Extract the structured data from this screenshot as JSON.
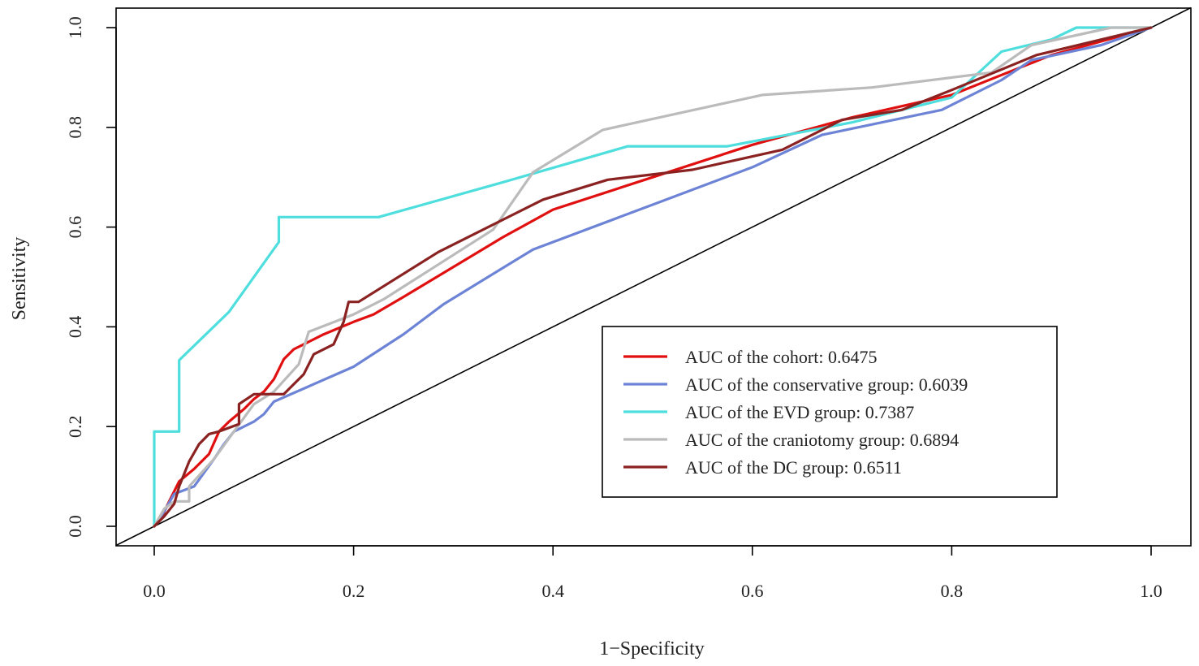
{
  "chart_data": {
    "type": "line",
    "title": "",
    "xlabel": "1−Specificity",
    "ylabel": "Sensitivity",
    "xlim": [
      0,
      1
    ],
    "ylim": [
      0,
      1
    ],
    "xticks": [
      "0.0",
      "0.2",
      "0.4",
      "0.6",
      "0.8",
      "1.0"
    ],
    "yticks": [
      "0.0",
      "0.2",
      "0.4",
      "0.6",
      "0.8",
      "1.0"
    ],
    "grid": false,
    "legend_position": "bottom-right",
    "reference_line": {
      "x": [
        0,
        1
      ],
      "y": [
        0,
        1
      ],
      "color": "#000000"
    },
    "series": [
      {
        "name": "AUC of the cohort: 0.6475",
        "color": "#e01010",
        "x": [
          0.0,
          0.008,
          0.015,
          0.025,
          0.04,
          0.055,
          0.065,
          0.075,
          0.09,
          0.1,
          0.11,
          0.12,
          0.13,
          0.14,
          0.15,
          0.17,
          0.2,
          0.22,
          0.25,
          0.3,
          0.35,
          0.4,
          0.5,
          0.6,
          0.7,
          0.8,
          0.85,
          0.9,
          1.0
        ],
        "y": [
          0.0,
          0.02,
          0.05,
          0.09,
          0.115,
          0.145,
          0.19,
          0.21,
          0.235,
          0.255,
          0.27,
          0.295,
          0.335,
          0.355,
          0.365,
          0.385,
          0.41,
          0.425,
          0.46,
          0.52,
          0.58,
          0.635,
          0.7,
          0.765,
          0.82,
          0.865,
          0.905,
          0.945,
          1.0
        ]
      },
      {
        "name": "AUC of the conservative group: 0.6039",
        "color": "#6d84d6",
        "x": [
          0.0,
          0.01,
          0.02,
          0.04,
          0.06,
          0.07,
          0.08,
          0.09,
          0.1,
          0.11,
          0.12,
          0.2,
          0.25,
          0.29,
          0.38,
          0.5,
          0.6,
          0.67,
          0.79,
          0.85,
          0.88,
          0.95,
          1.0
        ],
        "y": [
          0.0,
          0.03,
          0.065,
          0.08,
          0.135,
          0.165,
          0.19,
          0.2,
          0.21,
          0.225,
          0.25,
          0.32,
          0.385,
          0.445,
          0.555,
          0.645,
          0.72,
          0.785,
          0.835,
          0.895,
          0.935,
          0.965,
          1.0
        ]
      },
      {
        "name": "AUC of the EVD group: 0.7387",
        "color": "#4ddedd",
        "x": [
          0.0,
          0.0,
          0.025,
          0.025,
          0.075,
          0.125,
          0.125,
          0.225,
          0.35,
          0.475,
          0.575,
          0.7,
          0.8,
          0.85,
          0.9,
          0.925,
          0.95,
          1.0
        ],
        "y": [
          0.0,
          0.19,
          0.19,
          0.333,
          0.43,
          0.57,
          0.62,
          0.62,
          0.69,
          0.762,
          0.762,
          0.81,
          0.86,
          0.952,
          0.976,
          1.0,
          1.0,
          1.0
        ]
      },
      {
        "name": "AUC of the craniotomy group: 0.6894",
        "color": "#bbbbbb",
        "x": [
          0.0,
          0.01,
          0.02,
          0.035,
          0.035,
          0.06,
          0.08,
          0.1,
          0.12,
          0.145,
          0.155,
          0.2,
          0.23,
          0.34,
          0.38,
          0.45,
          0.61,
          0.72,
          0.84,
          0.88,
          0.96,
          1.0
        ],
        "y": [
          0.0,
          0.035,
          0.05,
          0.05,
          0.08,
          0.135,
          0.19,
          0.245,
          0.27,
          0.325,
          0.39,
          0.425,
          0.455,
          0.595,
          0.71,
          0.795,
          0.865,
          0.88,
          0.91,
          0.965,
          1.0,
          1.0
        ]
      },
      {
        "name": "AUC of the DC group: 0.6511",
        "color": "#8b2222",
        "x": [
          0.0,
          0.01,
          0.02,
          0.025,
          0.035,
          0.045,
          0.055,
          0.065,
          0.085,
          0.085,
          0.1,
          0.13,
          0.15,
          0.16,
          0.18,
          0.19,
          0.195,
          0.205,
          0.285,
          0.39,
          0.455,
          0.54,
          0.63,
          0.69,
          0.75,
          0.8,
          0.885,
          1.0
        ],
        "y": [
          0.0,
          0.02,
          0.045,
          0.08,
          0.13,
          0.165,
          0.185,
          0.19,
          0.205,
          0.245,
          0.265,
          0.265,
          0.305,
          0.345,
          0.365,
          0.41,
          0.45,
          0.45,
          0.55,
          0.655,
          0.695,
          0.715,
          0.755,
          0.815,
          0.835,
          0.875,
          0.945,
          1.0
        ]
      }
    ]
  }
}
